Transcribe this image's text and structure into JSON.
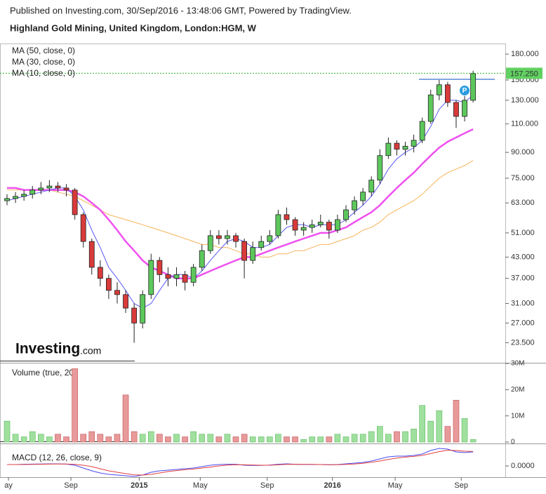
{
  "chart_data": {
    "type": "candlestick",
    "header": "Published on Investing.com, 30/Sep/2016 - 13:48:06 GMT, Powered by TradingView.",
    "title": "Highland Gold Mining, United Kingdom, London:HGM, W",
    "logo": "Investing",
    "logo_suffix": ".com",
    "open": [
      64,
      65,
      66,
      67,
      69,
      70,
      71,
      70,
      69,
      58,
      48,
      40,
      37,
      34,
      33,
      30,
      27,
      33,
      42,
      38,
      37,
      38,
      36,
      40,
      45,
      50,
      49,
      50,
      48,
      42,
      46,
      48,
      50,
      58,
      56,
      52,
      53,
      54,
      55,
      52,
      56,
      60,
      64,
      68,
      74,
      88,
      96,
      92,
      94,
      98,
      112,
      135,
      145,
      128,
      116,
      130
    ],
    "high": [
      67,
      68,
      69,
      71,
      73,
      74,
      73,
      72,
      70,
      59,
      49,
      42,
      38,
      36,
      34,
      31,
      34,
      44,
      43,
      40,
      40,
      39,
      41,
      47,
      52,
      52,
      52,
      51,
      49,
      48,
      50,
      52,
      60,
      61,
      57,
      55,
      56,
      58,
      56,
      58,
      62,
      66,
      70,
      76,
      92,
      100,
      98,
      97,
      102,
      115,
      140,
      150,
      148,
      130,
      134,
      160
    ],
    "low": [
      62,
      63,
      64,
      65,
      67,
      68,
      68,
      66,
      56,
      46,
      38,
      35,
      32,
      31,
      29,
      23.5,
      26,
      32,
      36,
      35,
      35,
      34,
      35,
      39,
      44,
      47,
      47,
      46,
      37,
      41,
      45,
      47,
      49,
      54,
      50,
      50,
      51,
      53,
      49,
      51,
      55,
      58,
      62,
      66,
      72,
      86,
      88,
      88,
      90,
      96,
      110,
      130,
      124,
      107,
      112,
      128
    ],
    "close": [
      65,
      66,
      67,
      69,
      70,
      71,
      70,
      69,
      58,
      48,
      40,
      37,
      34,
      33,
      30,
      27,
      33,
      42,
      38,
      37,
      38,
      36,
      40,
      45,
      50,
      49,
      50,
      48,
      42,
      46,
      48,
      50,
      58,
      56,
      52,
      53,
      54,
      55,
      52,
      56,
      60,
      64,
      68,
      74,
      88,
      96,
      92,
      94,
      98,
      112,
      135,
      145,
      128,
      116,
      130,
      157
    ],
    "up_color": "#5cc85c",
    "down_color": "#d93a3a",
    "log_scale": true,
    "grid": false,
    "xlim": [
      -0.83,
      58.8
    ],
    "xticks": [
      {
        "value": 0.17,
        "label": "ay"
      },
      {
        "value": 7.54,
        "label": "Sep"
      },
      {
        "value": 15.6,
        "label": "2015"
      },
      {
        "value": 22.8,
        "label": "May"
      },
      {
        "value": 30.7,
        "label": "Sep"
      },
      {
        "value": 38.4,
        "label": "2016"
      },
      {
        "value": 45.8,
        "label": "May"
      },
      {
        "value": 53.6,
        "label": "Sep"
      }
    ],
    "ylim": [
      20.5,
      194
    ],
    "yticks": [
      {
        "value": 23.5,
        "label": "23.500"
      },
      {
        "value": 27,
        "label": "27.000"
      },
      {
        "value": 31,
        "label": "31.000"
      },
      {
        "value": 37,
        "label": "37.000"
      },
      {
        "value": 43,
        "label": "43.000"
      },
      {
        "value": 51,
        "label": "51.000"
      },
      {
        "value": 63,
        "label": "63.000"
      },
      {
        "value": 75,
        "label": "75.000"
      },
      {
        "value": 90,
        "label": "90.000"
      },
      {
        "value": 110,
        "label": "110.000"
      },
      {
        "value": 130,
        "label": "130.000"
      },
      {
        "value": 150,
        "label": "150.000"
      },
      {
        "value": 180,
        "label": "180.000"
      }
    ],
    "last_price": {
      "value": 157.25,
      "label": "157.250"
    },
    "series": [
      {
        "name": "MA (50, close, 0)",
        "color": "#f5b45a",
        "width": 1,
        "values": [
          69,
          69,
          69,
          69,
          69,
          69,
          68,
          67,
          66,
          64,
          62,
          60,
          58,
          57,
          56,
          55,
          54,
          53,
          52,
          51,
          50,
          49,
          48,
          47,
          47,
          46,
          46,
          45,
          44,
          44,
          43,
          43,
          44,
          44,
          45,
          45,
          46,
          47,
          47,
          48,
          49,
          50,
          52,
          53,
          55,
          58,
          60,
          62,
          64,
          67,
          71,
          75,
          78,
          80,
          82,
          85
        ]
      },
      {
        "name": "MA (30, close, 0)",
        "color": "#f050f0",
        "width": 2.5,
        "values": [
          70,
          70,
          69,
          69,
          69,
          69,
          69,
          69,
          68,
          66,
          63,
          60,
          56,
          52,
          48,
          45,
          42,
          40,
          39,
          38,
          37,
          37,
          37,
          38,
          39,
          40,
          41,
          42,
          43,
          43,
          44,
          45,
          46,
          47,
          48,
          49,
          50,
          51,
          51,
          52,
          53,
          55,
          57,
          59,
          62,
          66,
          70,
          74,
          78,
          83,
          88,
          93,
          97,
          100,
          103,
          106
        ]
      },
      {
        "name": "MA (10, close, 0)",
        "color": "#5b5bf0",
        "width": 1,
        "values": [
          64,
          65,
          66,
          67,
          68,
          69,
          70,
          70,
          66,
          60,
          52,
          46,
          40,
          37,
          34,
          31,
          30,
          31,
          34,
          37,
          38,
          38,
          37,
          39,
          42,
          45,
          48,
          49,
          48,
          46,
          46,
          47,
          50,
          53,
          54,
          54,
          53,
          54,
          54,
          54,
          56,
          59,
          62,
          66,
          72,
          80,
          86,
          90,
          93,
          98,
          108,
          122,
          130,
          130,
          128,
          135
        ]
      }
    ],
    "volume": {
      "label": "Volume (true, 20)",
      "values": [
        8000000,
        3000000,
        2000000,
        4000000,
        3000000,
        2000000,
        3000000,
        2000000,
        28000000,
        3000000,
        4000000,
        3000000,
        2000000,
        3000000,
        18000000,
        4000000,
        3000000,
        4000000,
        3000000,
        2000000,
        3000000,
        2000000,
        4000000,
        3000000,
        3000000,
        2000000,
        3000000,
        2000000,
        3000000,
        2000000,
        2000000,
        2000000,
        3000000,
        2000000,
        2000000,
        1000000,
        2000000,
        2000000,
        2000000,
        3000000,
        2000000,
        3000000,
        3000000,
        4000000,
        6000000,
        3000000,
        4000000,
        4000000,
        5000000,
        14000000,
        8000000,
        12000000,
        6000000,
        16000000,
        9000000,
        1000000
      ],
      "ylim": [
        0,
        30000000
      ],
      "yticks": [
        0,
        {
          "value": 10000000,
          "label": "10M"
        },
        {
          "value": 20000000,
          "label": "20M"
        },
        {
          "value": 30000000,
          "label": "30M"
        }
      ]
    },
    "macd": {
      "label": "MACD (12, 26, close, 9)",
      "ylim": [
        -8,
        15
      ],
      "yticks": [
        {
          "value": 0,
          "label": "0.0000"
        }
      ],
      "lines": [
        {
          "color": "#4a4af0",
          "values": [
            1,
            1,
            1.2,
            1.3,
            1.4,
            1.5,
            1.5,
            1.3,
            0.5,
            -1.5,
            -3.5,
            -5,
            -6,
            -6.5,
            -7,
            -7.5,
            -6.5,
            -4.5,
            -3.5,
            -3,
            -2.5,
            -2,
            -1.5,
            -0.5,
            0.5,
            1,
            1.2,
            1.2,
            0.5,
            0.3,
            0.4,
            0.6,
            1.2,
            1.5,
            1.2,
            1,
            1,
            1,
            0.8,
            1,
            1.5,
            2,
            2.5,
            3.5,
            5,
            6.5,
            7,
            7,
            7.5,
            8.5,
            11,
            12.5,
            12,
            10,
            9.5,
            10
          ]
        },
        {
          "color": "#e04040",
          "values": [
            1,
            1,
            1,
            1.1,
            1.2,
            1.3,
            1.4,
            1.4,
            1.1,
            0.5,
            -0.5,
            -2,
            -3.5,
            -4.5,
            -5.5,
            -6.3,
            -6.5,
            -6,
            -5,
            -4,
            -3.3,
            -2.7,
            -2.2,
            -1.5,
            -0.8,
            0,
            0.6,
            0.9,
            0.8,
            0.6,
            0.5,
            0.5,
            0.8,
            1.1,
            1.2,
            1.1,
            1.1,
            1,
            0.9,
            0.9,
            1.1,
            1.4,
            1.9,
            2.6,
            3.5,
            4.6,
            5.6,
            6.3,
            6.8,
            7.5,
            8.8,
            10.2,
            11.2,
            11,
            10.5,
            10.3
          ]
        }
      ]
    }
  }
}
